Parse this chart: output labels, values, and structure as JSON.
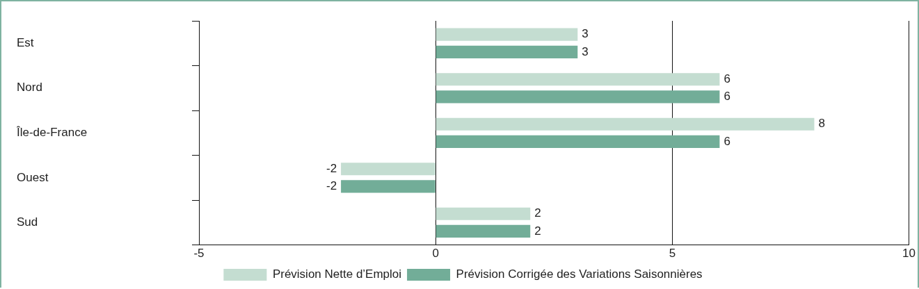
{
  "chart_data": {
    "type": "bar",
    "orientation": "horizontal",
    "categories": [
      "Est",
      "Nord",
      "Île-de-France",
      "Ouest",
      "Sud"
    ],
    "series": [
      {
        "name": "Prévision Nette d’Emploi",
        "color": "#c4ddd1",
        "values": [
          3,
          6,
          8,
          -2,
          2
        ]
      },
      {
        "name": "Prévision Corrigée des Variations Saisonnières",
        "color": "#72ad98",
        "values": [
          3,
          6,
          6,
          -2,
          2
        ]
      }
    ],
    "xlim": [
      -5,
      10
    ],
    "xticks": [
      -5,
      0,
      5,
      10
    ],
    "grid": "x",
    "legend": "bottom",
    "data_labels": true
  }
}
